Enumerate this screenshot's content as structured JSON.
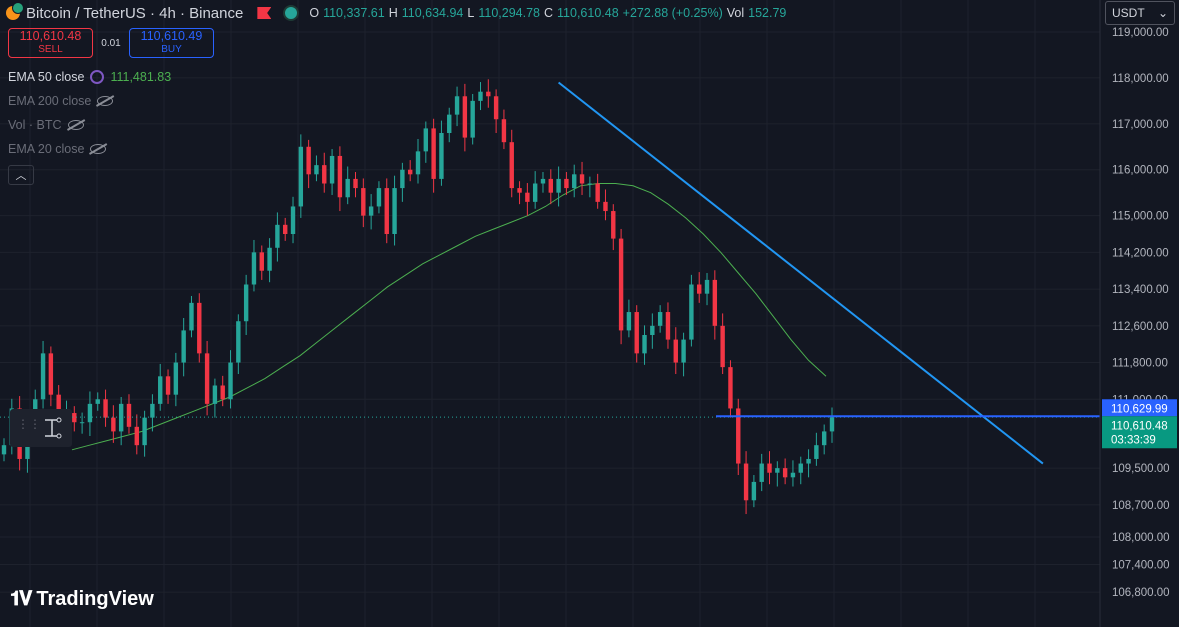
{
  "header": {
    "symbol": "Bitcoin / TetherUS · 4h · Binance",
    "ohlc": [
      {
        "k": "O",
        "v": "110,337.61"
      },
      {
        "k": "H",
        "v": "110,634.94"
      },
      {
        "k": "L",
        "v": "110,294.78"
      },
      {
        "k": "C",
        "v": "110,610.48"
      }
    ],
    "change": "+272.88 (+0.25%)",
    "vol_label": "Vol",
    "vol_value": "152.79"
  },
  "trade": {
    "sell_price": "110,610.48",
    "sell_label": "SELL",
    "spread": "0.01",
    "buy_price": "110,610.49",
    "buy_label": "BUY"
  },
  "indicators": [
    {
      "name": "EMA 50 close",
      "value": "111,481.83",
      "visible": true
    },
    {
      "name": "EMA 200 close",
      "visible": false
    },
    {
      "name": "Vol · BTC",
      "visible": false
    },
    {
      "name": "EMA 20 close",
      "visible": false
    }
  ],
  "currency_selector": "USDT",
  "brand": "TradingView",
  "colors": {
    "background": "#131722",
    "up": "#26a69a",
    "down": "#f23645",
    "ema50": "#4caf50",
    "trendline": "#2196f3",
    "level": "#2962ff",
    "grid": "#1e222d"
  },
  "chart_data": {
    "type": "candlestick",
    "y_axis_ticks": [
      119000,
      118000,
      117000,
      116000,
      115000,
      114200,
      113400,
      112600,
      111800,
      111000,
      109500,
      108700,
      108000,
      107400,
      106800
    ],
    "y_tick_labels": [
      "119,000.00",
      "118,000.00",
      "117,000.00",
      "116,000.00",
      "115,000.00",
      "114,200.00",
      "113,400.00",
      "112,600.00",
      "111,800.00",
      "111,000.00",
      "109,500.00",
      "108,700.00",
      "108,000.00",
      "107,400.00",
      "106,800.00"
    ],
    "ylim": [
      106800,
      119200
    ],
    "price_labels": {
      "level_price": "110,629.99",
      "last_price": "110,610.48",
      "countdown": "03:33:39"
    },
    "level_value": 110629.99,
    "last_value": 110610.48,
    "candles_close_path": [
      110000,
      110800,
      109700,
      110400,
      111000,
      112000,
      111100,
      110300,
      110700,
      110500,
      110500,
      110900,
      111000,
      110600,
      110300,
      110900,
      110400,
      110000,
      110600,
      110900,
      111500,
      111100,
      111800,
      112500,
      113100,
      112000,
      110900,
      111300,
      111000,
      111800,
      112700,
      113500,
      114200,
      113800,
      114300,
      114800,
      114600,
      115200,
      116500,
      115900,
      116100,
      115700,
      116300,
      115400,
      115800,
      115600,
      115000,
      115200,
      115600,
      114600,
      115600,
      116000,
      115900,
      116400,
      116900,
      115800,
      116800,
      117200,
      117600,
      116700,
      117500,
      117700,
      117600,
      117100,
      116600,
      115600,
      115500,
      115300,
      115700,
      115800,
      115500,
      115800,
      115600,
      115900,
      115700,
      115700,
      115300,
      115100,
      114500,
      112500,
      112900,
      112000,
      112400,
      112600,
      112900,
      112300,
      111800,
      112300,
      113500,
      113300,
      113600,
      112600,
      111700,
      110800,
      109600,
      108800,
      109200,
      109600,
      109400,
      109500,
      109300,
      109400,
      109600,
      109700,
      110000,
      110300,
      110610
    ],
    "ema50": [
      109900,
      110000,
      110100,
      110200,
      110300,
      110450,
      110600,
      110750,
      110900,
      111050,
      111250,
      111450,
      111700,
      111950,
      112250,
      112550,
      112850,
      113150,
      113450,
      113700,
      113950,
      114150,
      114350,
      114550,
      114700,
      114850,
      115000,
      115200,
      115450,
      115650,
      115700,
      115700,
      115650,
      115500,
      115250,
      114950,
      114600,
      114200,
      113750,
      113300,
      112800,
      112300,
      111850,
      111500
    ],
    "trendline": {
      "from": {
        "candle": 71,
        "price": 117900
      },
      "to": {
        "candle": 133,
        "price": 109600
      }
    }
  }
}
